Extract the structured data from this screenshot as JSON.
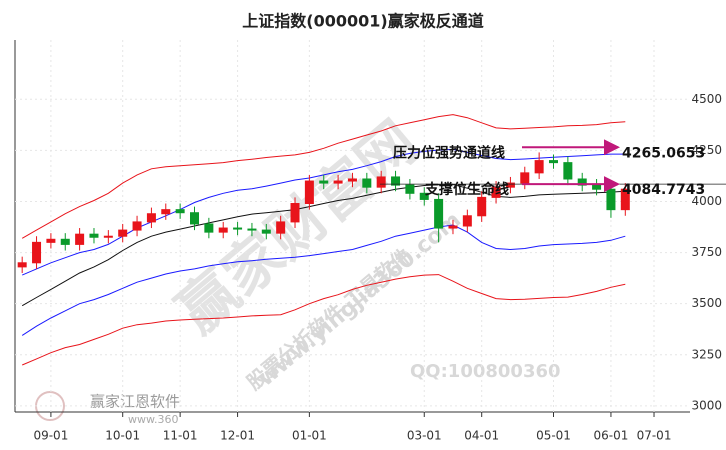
{
  "chart_data": {
    "type": "candlestick",
    "title": "上证指数(000001)赢家极反通道",
    "categories": [
      null,
      null,
      "09-01",
      null,
      null,
      null,
      null,
      "10-01",
      null,
      null,
      null,
      "11-01",
      null,
      null,
      null,
      "12-01",
      null,
      null,
      null,
      null,
      "01-01",
      null,
      null,
      null,
      null,
      null,
      null,
      null,
      "03-01",
      null,
      null,
      null,
      "04-01",
      null,
      null,
      null,
      null,
      "05-01",
      null,
      null,
      null,
      "06-01",
      null,
      null,
      "07-01"
    ],
    "open": [
      3680,
      3700,
      3800,
      3815,
      3790,
      3840,
      3825,
      3830,
      3860,
      3900,
      3940,
      3960,
      3945,
      3890,
      3850,
      3870,
      3865,
      3860,
      3845,
      3900,
      3990,
      4100,
      4090,
      4100,
      4110,
      4070,
      4120,
      4080,
      4040,
      4010,
      3870,
      3880,
      3930,
      4020,
      4070,
      4090,
      4140,
      4200,
      4190,
      4110,
      4080,
      4060,
      3960,
      null,
      null
    ],
    "high": [
      3730,
      3830,
      3845,
      3845,
      3870,
      3870,
      3860,
      3890,
      3930,
      3970,
      3990,
      3990,
      3975,
      3920,
      3900,
      3900,
      3895,
      3890,
      3930,
      4020,
      4130,
      4130,
      4130,
      4140,
      4140,
      4150,
      4150,
      4110,
      4070,
      4040,
      3910,
      3960,
      4050,
      4100,
      4120,
      4170,
      4240,
      4230,
      4220,
      4140,
      4110,
      4090,
      4090,
      null,
      null
    ],
    "low": [
      3650,
      3670,
      3770,
      3760,
      3760,
      3795,
      3795,
      3800,
      3830,
      3870,
      3910,
      3915,
      3860,
      3820,
      3820,
      3835,
      3830,
      3815,
      3815,
      3870,
      3960,
      4060,
      4060,
      4070,
      4040,
      4040,
      4050,
      4010,
      3980,
      3800,
      3840,
      3850,
      3900,
      3990,
      4040,
      4060,
      4110,
      4160,
      4080,
      4050,
      4030,
      3920,
      3930,
      null,
      null
    ],
    "close": [
      3700,
      3800,
      3815,
      3790,
      3840,
      3825,
      3830,
      3860,
      3900,
      3940,
      3960,
      3945,
      3890,
      3850,
      3870,
      3865,
      3860,
      3845,
      3900,
      3990,
      4100,
      4090,
      4100,
      4110,
      4070,
      4120,
      4080,
      4040,
      4010,
      3870,
      3880,
      3930,
      4020,
      4070,
      4090,
      4140,
      4200,
      4190,
      4110,
      4080,
      4060,
      3960,
      4060,
      null,
      null
    ],
    "up_color": "#e8141b",
    "down_color": "#0a9a2a",
    "series": [
      {
        "color": "#e8141b",
        "values": [
          3820,
          3860,
          3900,
          3940,
          3975,
          4005,
          4040,
          4090,
          4130,
          4160,
          4170,
          4175,
          4180,
          4185,
          4190,
          4200,
          4207,
          4215,
          4222,
          4228,
          4240,
          4260,
          4285,
          4305,
          4325,
          4345,
          4370,
          4385,
          4400,
          4415,
          4425,
          4410,
          4385,
          4360,
          4355,
          4358,
          4362,
          4365,
          4370,
          4372,
          4376,
          4385,
          4390,
          null,
          null
        ]
      },
      {
        "color": "#1a1aff",
        "values": [
          3640,
          3670,
          3700,
          3725,
          3750,
          3765,
          3790,
          3830,
          3870,
          3900,
          3930,
          3960,
          3995,
          4020,
          4040,
          4055,
          4062,
          4075,
          4090,
          4105,
          4115,
          4130,
          4145,
          4157,
          4175,
          4195,
          4220,
          4235,
          4245,
          4252,
          4255,
          4240,
          4225,
          4210,
          4205,
          4208,
          4212,
          4216,
          4220,
          4224,
          4228,
          4232,
          4232,
          null,
          null
        ]
      },
      {
        "color": "#111111",
        "values": [
          3490,
          3530,
          3570,
          3610,
          3650,
          3680,
          3715,
          3760,
          3800,
          3830,
          3850,
          3865,
          3880,
          3895,
          3910,
          3925,
          3938,
          3945,
          3952,
          3960,
          3975,
          3990,
          4005,
          4015,
          4030,
          4045,
          4060,
          4070,
          4078,
          4082,
          4083,
          4065,
          4045,
          4025,
          4020,
          4025,
          4032,
          4035,
          4038,
          4040,
          4043,
          4046,
          4050,
          null,
          null
        ]
      },
      {
        "color": "#1a1aff",
        "values": [
          3345,
          3390,
          3430,
          3465,
          3500,
          3520,
          3545,
          3575,
          3605,
          3625,
          3645,
          3660,
          3670,
          3685,
          3695,
          3705,
          3710,
          3717,
          3722,
          3727,
          3735,
          3745,
          3755,
          3765,
          3785,
          3805,
          3830,
          3845,
          3860,
          3875,
          3885,
          3850,
          3800,
          3770,
          3765,
          3770,
          3782,
          3789,
          3792,
          3795,
          3800,
          3810,
          3830,
          null,
          null
        ]
      },
      {
        "color": "#e8141b",
        "values": [
          3200,
          3230,
          3260,
          3285,
          3300,
          3325,
          3350,
          3380,
          3397,
          3405,
          3415,
          3420,
          3424,
          3427,
          3430,
          3435,
          3440,
          3443,
          3446,
          3470,
          3500,
          3525,
          3544,
          3570,
          3590,
          3605,
          3620,
          3632,
          3640,
          3642,
          3610,
          3575,
          3550,
          3525,
          3520,
          3522,
          3526,
          3530,
          3532,
          3545,
          3560,
          3580,
          3595,
          null,
          null
        ]
      }
    ],
    "ylim": [
      2970,
      4790
    ],
    "yticks": [
      3000,
      3250,
      3500,
      3750,
      4000,
      4250,
      4500
    ],
    "grid": true,
    "annotations": [
      {
        "text": "压力位强势通道线",
        "value": 4265.0653,
        "color": "#c0187a"
      },
      {
        "text": "支撑位生命线",
        "value": 4084.7743,
        "color": "#c0187a"
      }
    ],
    "watermarks": [
      "赢家财富网",
      "赢家江恩软件",
      "股票分析软件 工具软件",
      "www.yingjia360.com",
      "QQ:100800360",
      "www.360"
    ]
  }
}
